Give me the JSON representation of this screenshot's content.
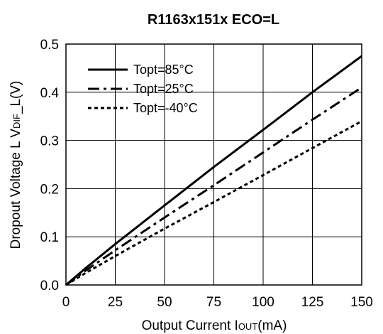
{
  "chart_data": {
    "type": "line",
    "title": "R1163x151x ECO=L",
    "xlabel": {
      "main": "Output Current I",
      "sub": "OUT",
      "unit": "(mA)"
    },
    "ylabel": {
      "main": "Dropout Voltage L V",
      "sub": "DIF",
      "unit": "_L(V)"
    },
    "xlim": [
      0,
      150
    ],
    "ylim": [
      0.0,
      0.5
    ],
    "xticks": [
      "0",
      "25",
      "50",
      "75",
      "100",
      "125",
      "150"
    ],
    "yticks": [
      "0.0",
      "0.1",
      "0.2",
      "0.3",
      "0.4",
      "0.5"
    ],
    "grid": true,
    "legend_position": "top-left",
    "series": [
      {
        "name": "Topt=85°C",
        "style": "solid",
        "color": "#000000",
        "x": [
          0,
          10,
          25,
          50,
          75,
          100,
          125,
          150
        ],
        "y": [
          0,
          0.035,
          0.085,
          0.165,
          0.245,
          0.322,
          0.4,
          0.475
        ]
      },
      {
        "name": "Topt=25°C",
        "style": "dashdot",
        "color": "#000000",
        "x": [
          0,
          10,
          25,
          50,
          75,
          100,
          125,
          150
        ],
        "y": [
          0,
          0.03,
          0.072,
          0.14,
          0.207,
          0.275,
          0.343,
          0.41
        ]
      },
      {
        "name": "Topt=-40°C",
        "style": "dotted",
        "color": "#000000",
        "x": [
          0,
          10,
          25,
          50,
          75,
          100,
          125,
          150
        ],
        "y": [
          0,
          0.025,
          0.06,
          0.117,
          0.172,
          0.228,
          0.284,
          0.34
        ]
      }
    ]
  }
}
